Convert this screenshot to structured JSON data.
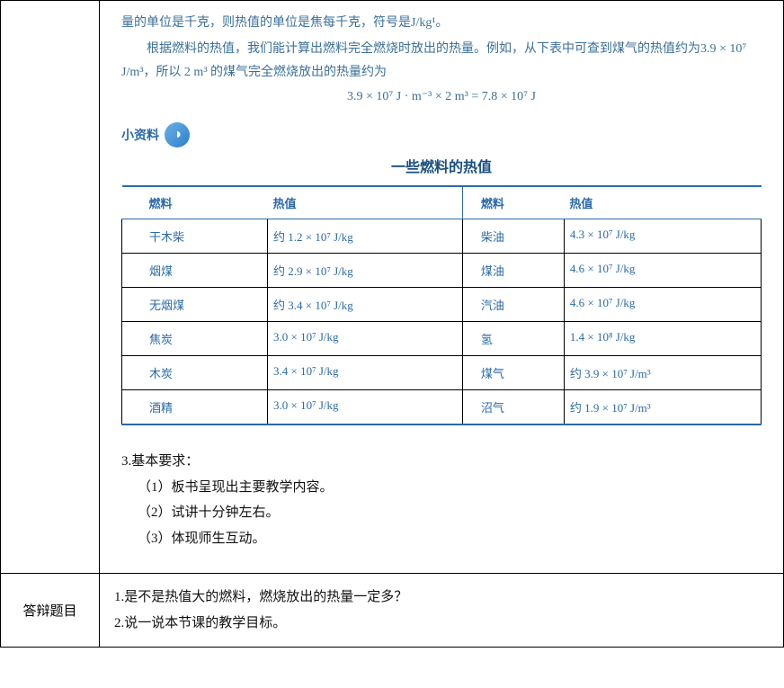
{
  "colors": {
    "text_blue": "#3a6f9a",
    "header_blue": "#2a6aa8",
    "title_blue": "#1a4f80",
    "black": "#111111",
    "white": "#ffffff",
    "icon_grad_start": "#68b0e8",
    "icon_grad_end": "#2f7fc9"
  },
  "fonts": {
    "body_family": "SimSun",
    "body_size_pt": 10.5,
    "title_size_pt": 12,
    "req_size_pt": 11
  },
  "paragraphs": {
    "p1": "量的单位是千克，则热值的单位是焦每千克，符号是J/kg¹。",
    "p2": "根据燃料的热值，我们能计算出燃料完全燃烧时放出的热量。例如，从下表中可查到煤气的热值约为3.9 × 10⁷ J/m³，所以 2 m³ 的煤气完全燃烧放出的热量约为",
    "formula": "3.9 × 10⁷ J · m⁻³ × 2 m³ = 7.8 × 10⁷ J"
  },
  "info_section": {
    "label": "小资料",
    "icon_glyph": "◑"
  },
  "fuel_table": {
    "title": "一些燃料的热值",
    "columns": [
      "燃料",
      "热值",
      "燃料",
      "热值"
    ],
    "rows": [
      [
        "干木柴",
        "约 1.2 × 10⁷ J/kg",
        "柴油",
        "4.3 × 10⁷ J/kg"
      ],
      [
        "烟煤",
        "约 2.9 × 10⁷ J/kg",
        "煤油",
        "4.6 × 10⁷ J/kg"
      ],
      [
        "无烟煤",
        "约 3.4 × 10⁷ J/kg",
        "汽油",
        "4.6 × 10⁷ J/kg"
      ],
      [
        "焦炭",
        "3.0 × 10⁷ J/kg",
        "氢",
        "1.4 × 10⁸ J/kg"
      ],
      [
        "木炭",
        "3.4 × 10⁷ J/kg",
        "煤气",
        "约 3.9 × 10⁷ J/m³"
      ],
      [
        "酒精",
        "3.0 × 10⁷ J/kg",
        "沼气",
        "约 1.9 × 10⁷ J/m³"
      ]
    ],
    "border_color": "#2a6aa8",
    "font_color": "#2a6aa8"
  },
  "requirements": {
    "heading": "3.基本要求：",
    "items": [
      "（1）板书呈现出主要教学内容。",
      "（2）试讲十分钟左右。",
      "（3）体现师生互动。"
    ]
  },
  "answer_row": {
    "label": "答辩题目",
    "q1": "1.是不是热值大的燃料，燃烧放出的热量一定多？",
    "q2": "2.说一说本节课的教学目标。"
  }
}
